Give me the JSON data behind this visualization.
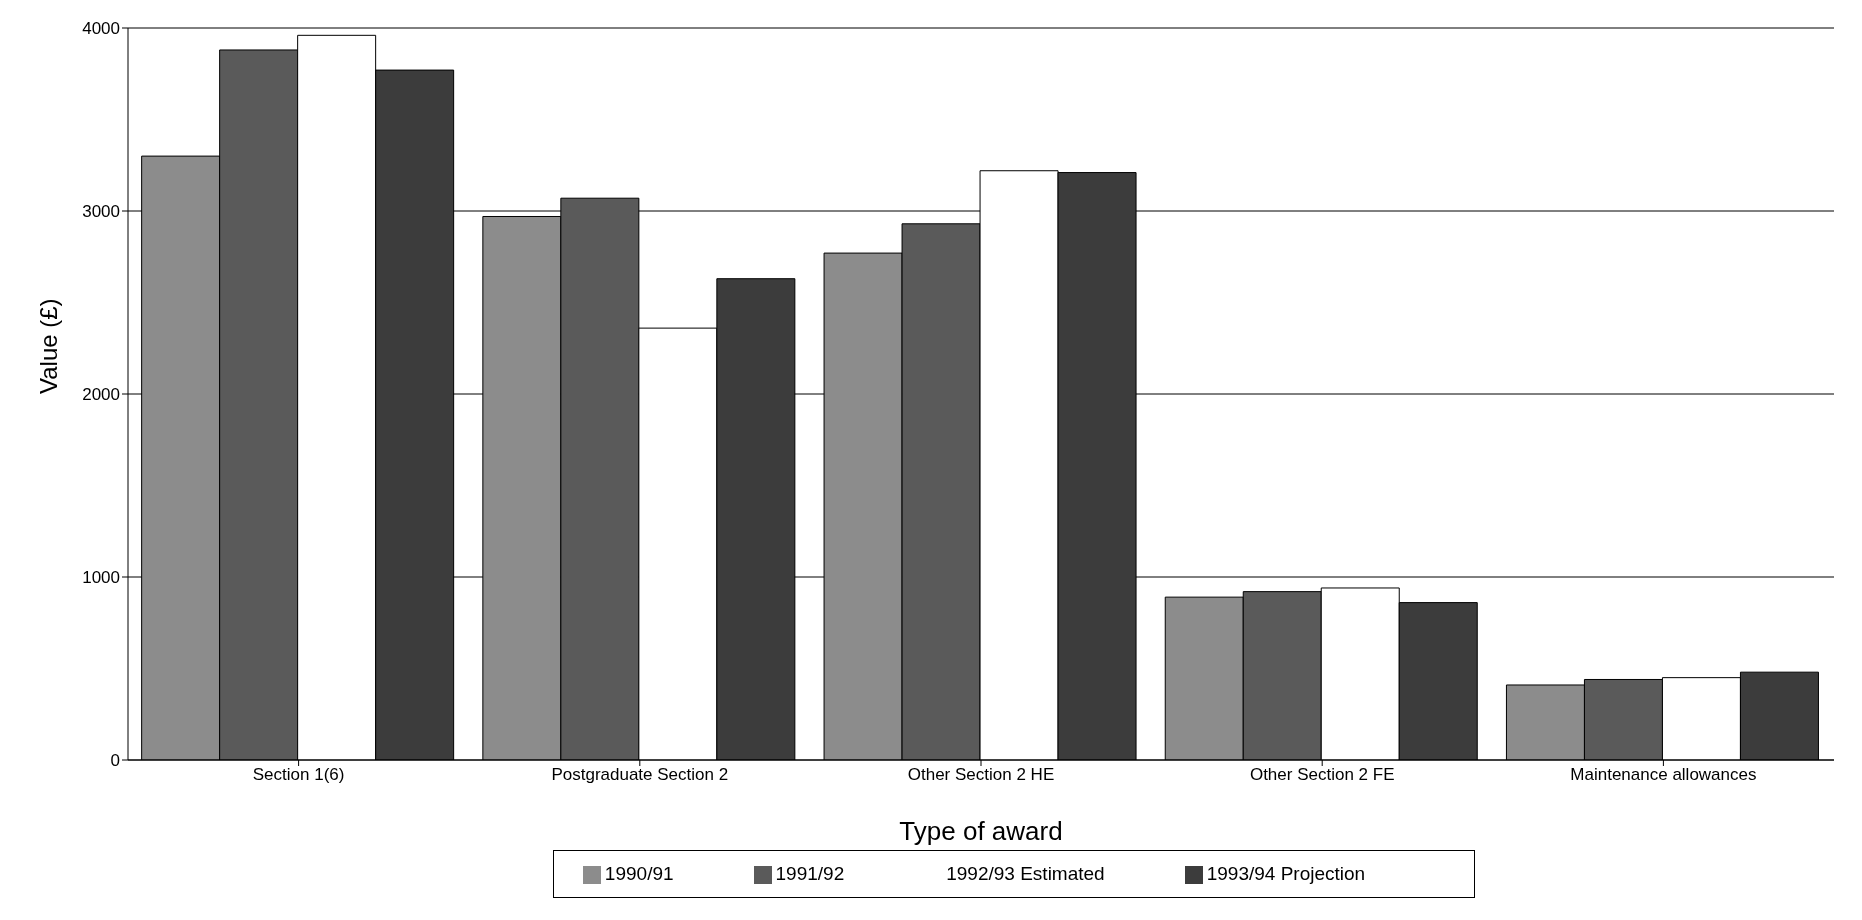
{
  "chart_data": {
    "type": "bar",
    "xlabel": "Type of award",
    "ylabel": "Value (£)",
    "categories": [
      "Section 1(6)",
      "Postgraduate Section 2",
      "Other Section 2 HE",
      "Other Section 2 FE",
      "Maintenance allowances"
    ],
    "series": [
      {
        "name": "1990/91",
        "color": "#8c8c8c",
        "values": [
          3300,
          2970,
          2770,
          890,
          410
        ]
      },
      {
        "name": "1991/92",
        "color": "#5a5a5a",
        "values": [
          3880,
          3070,
          2930,
          920,
          440
        ]
      },
      {
        "name": "1992/93 Estimated",
        "color": "#ffffff",
        "values": [
          3960,
          2360,
          3220,
          940,
          450
        ]
      },
      {
        "name": "1993/94 Projection",
        "color": "#3c3c3c",
        "values": [
          3770,
          2630,
          3210,
          860,
          480
        ]
      }
    ],
    "ylim": [
      0,
      4000
    ],
    "yticks": [
      0,
      1000,
      2000,
      3000,
      4000
    ],
    "grid": "y",
    "legend": "bottom"
  }
}
